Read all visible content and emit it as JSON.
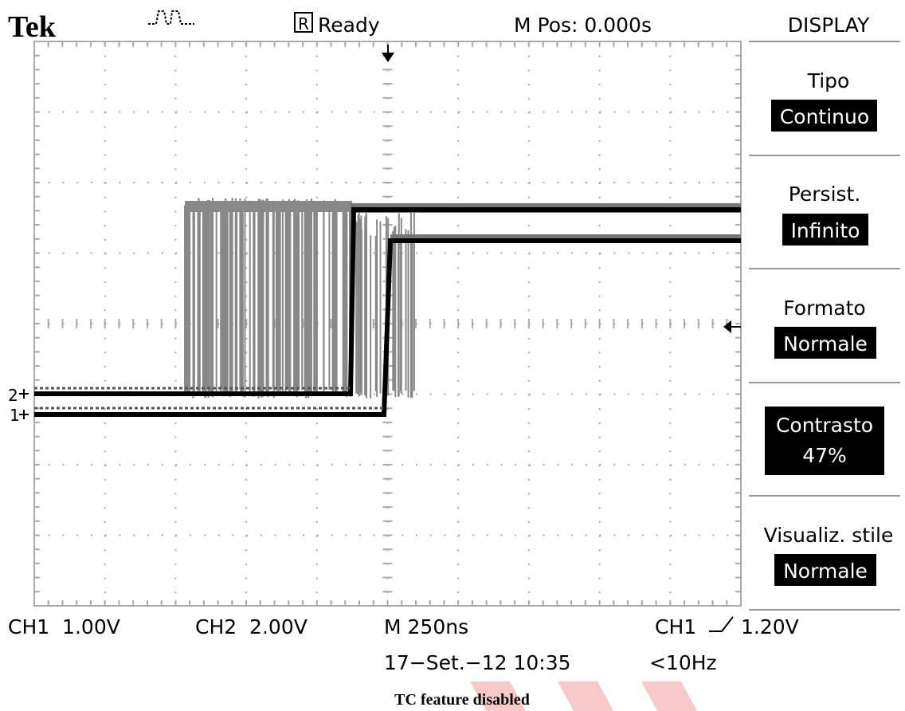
{
  "header": {
    "brand": "Tek",
    "status_icon": "R",
    "status": "Ready",
    "position": "M Pos: 0.000s"
  },
  "menu": {
    "title": "DISPLAY",
    "items": [
      {
        "label": "Tipo",
        "value": "Continuo"
      },
      {
        "label": "Persist.",
        "value": "Infinito"
      },
      {
        "label": "Formato",
        "value": "Normale"
      },
      {
        "label": "Contrasto",
        "value": "47%"
      },
      {
        "label": "Visualiz. stile",
        "value": "Normale"
      }
    ]
  },
  "markers": {
    "ch2": "2",
    "ch1": "1"
  },
  "footer": {
    "ch1_scale": "CH1  1.00V",
    "ch2_scale": "CH2  2.00V",
    "timebase": "M 250ns",
    "trigger_source": "CH1",
    "trigger_level": "1.20V",
    "date": "17−Set.−12 10:35",
    "frequency": "<10Hz",
    "notice": "TC feature disabled"
  }
}
